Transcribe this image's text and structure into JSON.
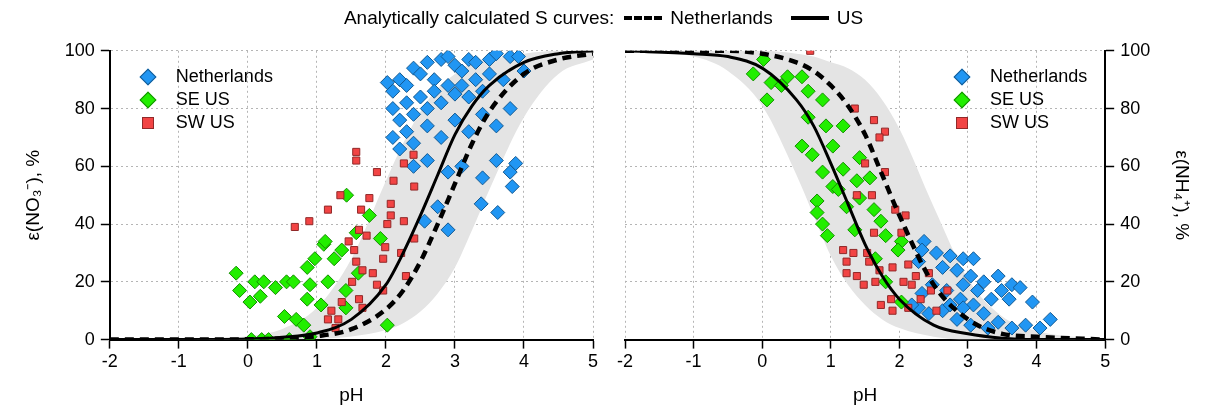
{
  "chart_data": [
    {
      "type": "scatter",
      "legend_title": "Analytically calculated S curves:",
      "xlabel": "pH",
      "ylabel": "ε(NO₃⁻), %",
      "xlim": [
        -2,
        5
      ],
      "xticks": [
        -2,
        -1,
        0,
        1,
        2,
        3,
        4,
        5
      ],
      "ylim": [
        0,
        100
      ],
      "yticks": [
        0,
        20,
        40,
        60,
        80,
        100
      ],
      "grid": true,
      "legend": "top",
      "series": [
        {
          "name": "Netherlands",
          "type": "line",
          "color": "#000000",
          "line_style": "dashed",
          "marker": "none",
          "x": [
            -2,
            -1,
            0,
            0.5,
            1,
            1.5,
            2,
            2.25,
            2.5,
            2.75,
            3,
            3.25,
            3.5,
            4,
            4.5,
            5
          ],
          "values": [
            0,
            0,
            0.1,
            0.4,
            1.2,
            3.6,
            10.5,
            17,
            27,
            40,
            54,
            68,
            79,
            92,
            97,
            99
          ]
        },
        {
          "name": "US",
          "type": "line",
          "color": "#000000",
          "line_style": "solid",
          "marker": "none",
          "x": [
            -2,
            -1,
            0,
            0.5,
            1,
            1.5,
            2,
            2.25,
            2.5,
            2.75,
            3,
            3.25,
            3.5,
            4,
            4.5,
            5
          ],
          "values": [
            0,
            0,
            0.2,
            0.8,
            2.3,
            7,
            19,
            30,
            43,
            57,
            71,
            81,
            88,
            96,
            99,
            100
          ],
          "lower": [
            0,
            0,
            0,
            0.1,
            0.3,
            1.1,
            3.3,
            5.7,
            9.7,
            16,
            25,
            38,
            52,
            77,
            92,
            97
          ],
          "upper": [
            0,
            0.1,
            1.2,
            3.7,
            11,
            28,
            55,
            68,
            79,
            87,
            92,
            96,
            97,
            99,
            100,
            100
          ]
        },
        {
          "name": "Netherlands",
          "type": "scatter",
          "color": "#2196f3",
          "marker": "diamond",
          "x": [
            2.02,
            2.1,
            2.2,
            2.3,
            2.4,
            2.5,
            2.6,
            2.7,
            2.8,
            2.9,
            3.0,
            3.1,
            3.2,
            3.3,
            3.5,
            3.6,
            3.8,
            3.92,
            2.1,
            2.2,
            2.3,
            2.4,
            2.5,
            2.6,
            2.7,
            2.8,
            2.9,
            3.0,
            3.1,
            3.2,
            3.3,
            3.4,
            3.5,
            3.7,
            4.0,
            2.1,
            2.2,
            2.3,
            2.4,
            2.6,
            2.8,
            3.0,
            3.2,
            3.4,
            3.6,
            3.8,
            2.4,
            2.6,
            2.9,
            3.1,
            3.4,
            3.6,
            3.8,
            3.38,
            3.62,
            3.88,
            2.56,
            3.83,
            2.9,
            2.75
          ],
          "values": [
            89,
            86,
            90,
            88,
            94,
            92,
            96,
            90,
            97,
            98,
            95,
            93,
            97,
            96,
            97,
            99,
            98,
            98,
            80,
            76,
            82,
            78,
            84,
            80,
            86,
            82,
            88,
            85,
            88,
            84,
            90,
            86,
            92,
            90,
            93,
            70,
            66,
            72,
            68,
            74,
            70,
            76,
            72,
            78,
            74,
            80,
            60,
            62,
            58,
            60,
            56,
            62,
            58,
            47,
            44,
            61,
            41,
            53,
            38,
            46
          ]
        },
        {
          "name": "SE US",
          "type": "scatter",
          "color": "#22ee00",
          "marker": "diamond",
          "x": [
            -0.17,
            -0.12,
            0.03,
            0.1,
            0.23,
            0.18,
            0.4,
            0.56,
            0.53,
            0.7,
            0.86,
            1.1,
            0.86,
            0.05,
            0.2,
            0.6,
            0.9,
            1.43,
            1.12,
            1.36,
            0.97,
            1.16,
            1.76,
            2.02,
            0.66,
            0.9,
            1.42,
            1.57,
            1.92,
            1.42,
            1.06,
            0.81,
            0.3,
            1.25,
            1.6
          ],
          "values": [
            23,
            17,
            13,
            20,
            20,
            15,
            18,
            20,
            8,
            7,
            25,
            33,
            14,
            0,
            0,
            0,
            1,
            50,
            34,
            31,
            28,
            20,
            43,
            5,
            20,
            19,
            17,
            37,
            35,
            11,
            12,
            5,
            0,
            28,
            23
          ]
        },
        {
          "name": "SW US",
          "type": "scatter",
          "color": "#f24444",
          "marker": "square",
          "x": [
            1.57,
            1.57,
            0.68,
            0.89,
            1.16,
            1.34,
            1.87,
            2.11,
            2.26,
            2.4,
            2.41,
            1.64,
            1.76,
            2.07,
            2.07,
            1.61,
            1.72,
            2.02,
            2.26,
            2.41,
            1.46,
            1.54,
            1.99,
            2.22,
            1.57,
            1.66,
            1.81,
            1.96,
            2.29,
            1.51,
            1.87,
            1.36,
            1.61,
            1.21,
            1.31,
            1.27,
            1.66,
            1.96,
            1.16
          ],
          "values": [
            65,
            62,
            39,
            41,
            45,
            50,
            58,
            55,
            61,
            64,
            53,
            45,
            49,
            47,
            43,
            38,
            36,
            40,
            41,
            35,
            34,
            31,
            32,
            30,
            27,
            24,
            23,
            28,
            22,
            20,
            19,
            13,
            14,
            10,
            7,
            4,
            11,
            17,
            7
          ]
        }
      ]
    },
    {
      "type": "scatter",
      "xlabel": "pH",
      "ylabel": "ε(NH₄⁺), %",
      "xlim": [
        -2,
        5
      ],
      "xticks": [
        -2,
        -1,
        0,
        1,
        2,
        3,
        4,
        5
      ],
      "ylim": [
        0,
        100
      ],
      "yticks": [
        0,
        20,
        40,
        60,
        80,
        100
      ],
      "grid": true,
      "legend": "top right",
      "series": [
        {
          "type": "line",
          "color": "#000000",
          "line_style": "dashed",
          "marker": "none",
          "x": [
            -2,
            -1,
            -0.5,
            0,
            0.5,
            0.75,
            1,
            1.25,
            1.5,
            1.75,
            2,
            2.5,
            3,
            3.5,
            4,
            5
          ],
          "values": [
            100,
            100,
            100,
            99,
            96,
            93,
            88,
            81,
            71,
            57,
            43,
            19,
            7,
            2,
            1,
            0
          ]
        },
        {
          "type": "line",
          "color": "#000000",
          "line_style": "solid",
          "marker": "none",
          "x": [
            -2,
            -1,
            -0.5,
            0,
            0.5,
            0.75,
            1,
            1.25,
            1.5,
            1.75,
            2,
            2.5,
            3,
            3.5,
            4,
            5
          ],
          "values": [
            100,
            99,
            98,
            94,
            83,
            74,
            61,
            47,
            33,
            22,
            14,
            5,
            2,
            0.5,
            0,
            0
          ],
          "lower": [
            100,
            98,
            93,
            81,
            57,
            43,
            29,
            19,
            12,
            7,
            4,
            1,
            0,
            0,
            0,
            0
          ],
          "upper": [
            100,
            100,
            100,
            100,
            99,
            98,
            96,
            94,
            90,
            83,
            73,
            46,
            21,
            8,
            3,
            0
          ]
        },
        {
          "name": "Netherlands",
          "type": "scatter",
          "color": "#2196f3",
          "marker": "diamond",
          "x": [
            2.36,
            2.33,
            2.54,
            2.74,
            2.93,
            3.08,
            2.28,
            2.63,
            2.84,
            3.04,
            3.23,
            3.44,
            3.64,
            3.76,
            3.6,
            3.94,
            4.2,
            4.05,
            3.84,
            3.64,
            3.44,
            3.23,
            3.08,
            2.89,
            2.69,
            2.48,
            2.33,
            2.28,
            2.43,
            2.63,
            2.84,
            3.04,
            3.29,
            2.93,
            2.74,
            3.34,
            3.49,
            3.14,
            2.18,
            2.93
          ],
          "values": [
            34,
            31,
            30,
            29,
            28,
            28,
            27,
            25,
            24,
            22,
            20,
            22,
            19,
            18,
            14,
            13,
            7,
            4,
            5,
            4,
            6,
            9,
            12,
            14,
            17,
            19,
            16,
            11,
            9,
            10,
            7,
            5,
            4,
            11,
            12,
            14,
            17,
            17,
            12,
            19
          ]
        },
        {
          "name": "SE US",
          "type": "scatter",
          "color": "#22ee00",
          "marker": "diamond",
          "x": [
            -0.13,
            0.02,
            0.07,
            0.13,
            0.28,
            0.37,
            0.58,
            0.67,
            0.88,
            0.67,
            0.93,
            1.18,
            0.58,
            0.73,
            1.03,
            0.88,
            1.42,
            1.18,
            1.38,
            1.57,
            1.03,
            0.8,
            0.8,
            0.88,
            0.95,
            1.23,
            1.35,
            1.42,
            1.63,
            1.73,
            1.8,
            2.03,
            1.98,
            1.65,
            1.8,
            2.03,
            1.11
          ],
          "values": [
            92,
            97,
            83,
            89,
            88,
            91,
            91,
            86,
            83,
            77,
            74,
            74,
            67,
            64,
            67,
            58,
            63,
            59,
            55,
            56,
            53,
            48,
            44,
            40,
            36,
            46,
            38,
            49,
            45,
            41,
            36,
            34,
            31,
            28,
            20,
            13,
            52
          ]
        },
        {
          "name": "SW US",
          "type": "scatter",
          "color": "#f24444",
          "marker": "square",
          "x": [
            0.7,
            1.35,
            1.63,
            1.79,
            1.71,
            1.79,
            1.5,
            1.6,
            1.38,
            1.94,
            2.09,
            1.63,
            2.03,
            1.18,
            1.33,
            1.53,
            1.23,
            1.23,
            1.38,
            1.56,
            1.71,
            1.9,
            2.13,
            2.24,
            2.06,
            1.48,
            1.65,
            1.88,
            1.73,
            1.9,
            2.13,
            2.43,
            2.46,
            2.7,
            2.54,
            2.31,
            2.18
          ],
          "values": [
            100,
            80,
            76,
            72,
            70,
            58,
            61,
            50,
            50,
            45,
            43,
            37,
            37,
            31,
            30,
            30,
            27,
            23,
            22,
            27,
            24,
            25,
            26,
            22,
            20,
            19,
            20,
            14,
            12,
            10,
            11,
            23,
            17,
            17,
            10,
            14,
            19
          ]
        }
      ]
    }
  ]
}
